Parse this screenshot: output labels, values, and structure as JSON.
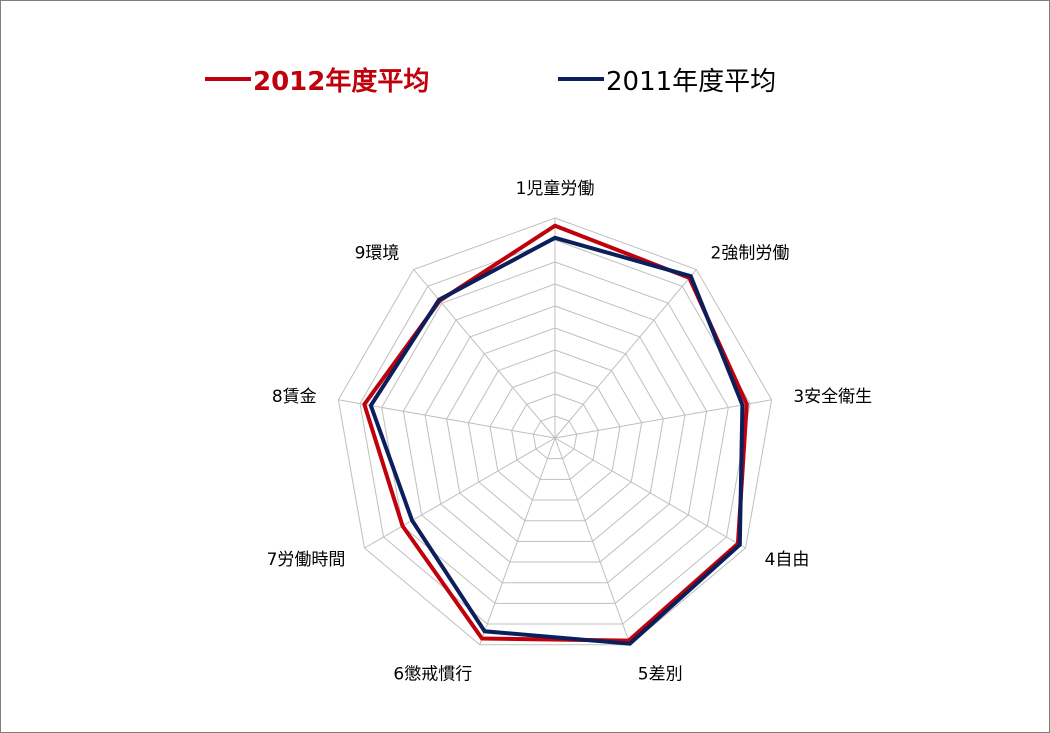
{
  "chart_data": {
    "type": "radar",
    "categories": [
      "1児童労働",
      "2強制労働",
      "3安全衛生",
      "4自由",
      "5差別",
      "6懲戒慣行",
      "7労働時間",
      "8賃金",
      "9環境"
    ],
    "series": [
      {
        "name": "2012年度平均",
        "color": "#c0000b",
        "values": [
          96.5,
          95.0,
          88.5,
          96.0,
          98.0,
          97.0,
          80.0,
          88.0,
          81.5
        ]
      },
      {
        "name": "2011年度平均",
        "color": "#0b1f5c",
        "values": [
          91.0,
          96.0,
          86.5,
          97.0,
          99.5,
          93.5,
          75.0,
          85.0,
          82.0
        ]
      }
    ],
    "rlim": [
      0,
      100
    ],
    "rings": 10,
    "grid": true,
    "legend_position": "top"
  }
}
